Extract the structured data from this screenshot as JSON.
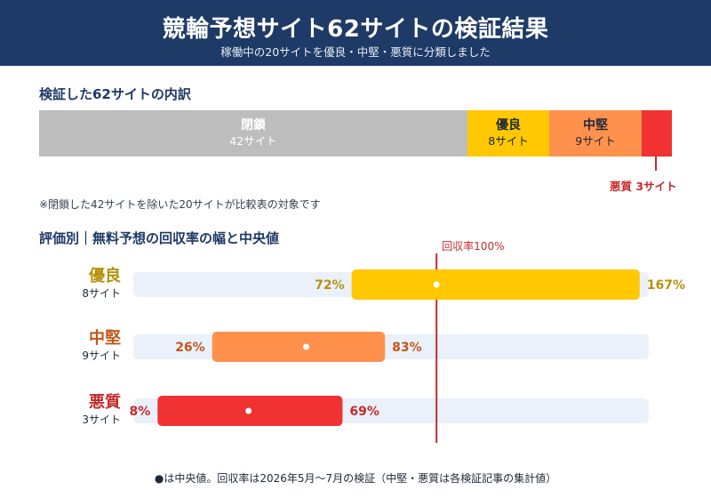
{
  "header": {
    "title": "競輪予想サイト62サイトの検証結果",
    "subtitle": "稼働中の20サイトを優良・中堅・悪質に分類しました"
  },
  "breakdown": {
    "title": "検証した62サイトの内訳",
    "total": 62,
    "segments": [
      {
        "key": "closed",
        "name": "閉鎖",
        "count": 42,
        "count_label": "42サイト",
        "color": "#bdbdbd"
      },
      {
        "key": "good",
        "name": "優良",
        "count": 8,
        "count_label": "8サイト",
        "color": "#ffc800"
      },
      {
        "key": "mid",
        "name": "中堅",
        "count": 9,
        "count_label": "9サイト",
        "color": "#ff914d"
      },
      {
        "key": "bad",
        "name": "悪質",
        "count": 3,
        "count_label": "悪質 3サイト",
        "color": "#f03232"
      }
    ],
    "note": "※閉鎖した42サイトを除いた20サイトが比較表の対象です"
  },
  "range_title": "評価別｜無料予想の回収率の幅と中央値",
  "chart_data": {
    "type": "bar",
    "orientation": "horizontal-range",
    "title": "評価別｜無料予想の回収率の幅と中央値",
    "reference_line": {
      "value": 100,
      "label": "回収率100%",
      "color": "#c52b2b"
    },
    "xlim": [
      0,
      170
    ],
    "categories": [
      "優良",
      "中堅",
      "悪質"
    ],
    "site_counts": [
      "8サイト",
      "9サイト",
      "3サイト"
    ],
    "series": [
      {
        "name": "優良",
        "min": 72,
        "max": 167,
        "median": 100,
        "min_label": "72%",
        "max_label": "167%",
        "color": "#ffc800",
        "text_color": "#b8900a"
      },
      {
        "name": "中堅",
        "min": 26,
        "max": 83,
        "median": 57,
        "min_label": "26%",
        "max_label": "83%",
        "color": "#ff914d",
        "text_color": "#c2561a"
      },
      {
        "name": "悪質",
        "min": 8,
        "max": 69,
        "median": 38,
        "min_label": "8%",
        "max_label": "69%",
        "color": "#f03232",
        "text_color": "#c52b2b"
      }
    ],
    "track_color": "#eaf1fa"
  },
  "footnote": "●は中央値。回収率は2026年5月〜7月の検証（中堅・悪質は各検証記事の集計値）"
}
